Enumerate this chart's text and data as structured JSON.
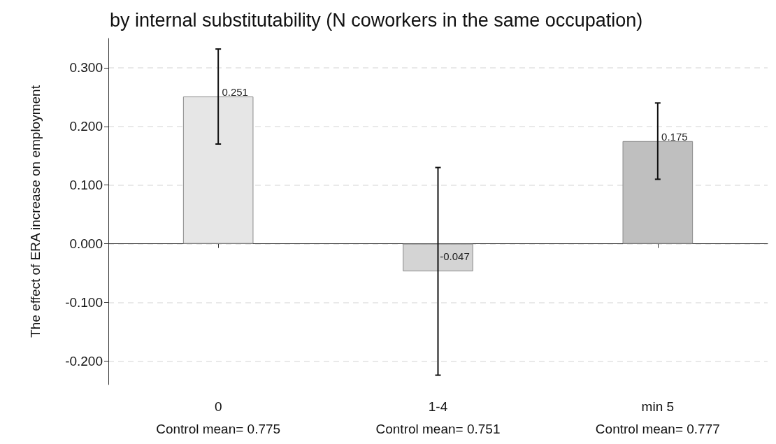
{
  "chart_data": {
    "type": "bar",
    "title": "by internal substitutability (N coworkers in the same occupation)",
    "ylabel": "The effect of ERA increase on employment",
    "categories": [
      "0",
      "1-4",
      "min 5"
    ],
    "values": [
      0.251,
      -0.047,
      0.175
    ],
    "errors": [
      [
        0.17,
        0.332
      ],
      [
        -0.224,
        0.13
      ],
      [
        0.11,
        0.24
      ]
    ],
    "colors": [
      "#e6e6e6",
      "#d4d4d4",
      "#bfbfbf"
    ],
    "data_labels": true,
    "ylim": [
      -0.24,
      0.35
    ],
    "yticks": [
      {
        "value": -0.2,
        "label": "-0.200"
      },
      {
        "value": -0.1,
        "label": "-0.100"
      },
      {
        "value": 0,
        "label": "0.000"
      },
      {
        "value": 0.1,
        "label": "0.100"
      },
      {
        "value": 0.2,
        "label": "0.200"
      },
      {
        "value": 0.3,
        "label": "0.300"
      }
    ],
    "grid": "y",
    "annotations": [
      "Control mean= 0.775",
      "Control mean= 0.751",
      "Control mean= 0.777"
    ]
  }
}
